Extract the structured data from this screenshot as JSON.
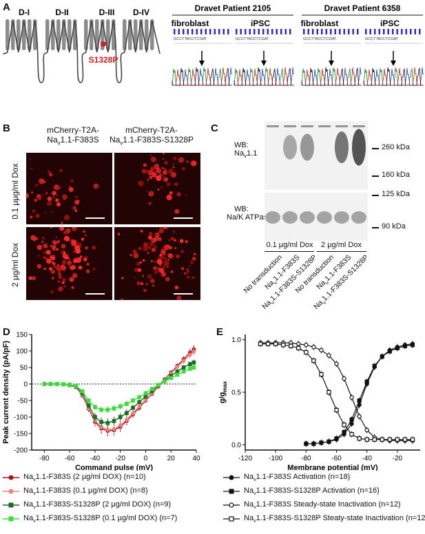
{
  "panelA": {
    "label": "A",
    "domains": [
      "D-I",
      "D-II",
      "D-III",
      "D-IV"
    ],
    "mutation": "S1328P",
    "patients": [
      {
        "title": "Dravet Patient 2105",
        "cells": [
          "fibroblast",
          "iPSC"
        ]
      },
      {
        "title": "Dravet Patient 6358",
        "cells": [
          "fibroblast",
          "iPSC"
        ]
      }
    ],
    "sequence": "GCCTTACCTCGAT"
  },
  "panelB": {
    "label": "B",
    "col_titles": [
      [
        "mCherry-T2A-",
        "Na",
        "v",
        "1.1-F383S"
      ],
      [
        "mCherry-T2A-",
        "Na",
        "v",
        "1.1-F383S-S1328P"
      ]
    ],
    "row_labels": [
      "0.1 μμg/ml Dox",
      "2 μg/ml Dox"
    ]
  },
  "panelC": {
    "label": "C",
    "wb_labels": [
      [
        "WB:",
        "Na",
        "v",
        "1.1"
      ],
      [
        "WB:",
        "Na/K ATPase"
      ]
    ],
    "markers": [
      "260 kDa",
      "160 kDa",
      "125 kDa",
      "90 kDa"
    ],
    "dox_groups": [
      "0.1 μg/ml Dox",
      "2 μg/ml Dox"
    ],
    "lanes": [
      {
        "pre": "No transduction",
        "sub": "",
        "post": ""
      },
      {
        "pre": "Na",
        "sub": "v",
        "post": "1.1-F383S"
      },
      {
        "pre": "Na",
        "sub": "v",
        "post": "1.1-F383S-S1328P"
      },
      {
        "pre": "No transduction",
        "sub": "",
        "post": ""
      },
      {
        "pre": "Na",
        "sub": "v",
        "post": "1.1-F383S"
      },
      {
        "pre": "Na",
        "sub": "v",
        "post": "1.1-F383S-S1328P"
      }
    ]
  },
  "chart_data": [
    {
      "panel": "D",
      "type": "line",
      "xlabel": "Command pulse (mV)",
      "ylabel": "Peak current density (pA/pF)",
      "xlim": [
        -90,
        40
      ],
      "ylim": [
        -200,
        150
      ],
      "xticks": [
        -80,
        -60,
        -40,
        -20,
        0,
        20,
        40
      ],
      "yticks": [
        -200,
        -150,
        -100,
        -50,
        0,
        50,
        100,
        150
      ],
      "x": [
        -80,
        -75,
        -70,
        -65,
        -60,
        -55,
        -50,
        -45,
        -40,
        -35,
        -30,
        -25,
        -20,
        -15,
        -10,
        -5,
        0,
        5,
        10,
        15,
        20,
        25,
        30,
        35,
        38
      ],
      "series": [
        {
          "name": "Na",
          "sub": "v",
          "rest": "1.1-F383S (2 μg/ml DOX) (n=10)",
          "color": "#a4161a",
          "marker": "circle",
          "values": [
            0,
            0,
            0,
            -1,
            -3,
            -10,
            -35,
            -75,
            -115,
            -135,
            -142,
            -140,
            -130,
            -112,
            -92,
            -72,
            -50,
            -30,
            -8,
            15,
            35,
            55,
            75,
            95,
            105
          ]
        },
        {
          "name": "Na",
          "sub": "v",
          "rest": "1.1-F383S (0.1 μg/ml DOX) (n=8)",
          "color": "#f08080",
          "marker": "circle",
          "values": [
            0,
            0,
            0,
            -1,
            -3,
            -10,
            -33,
            -72,
            -110,
            -130,
            -138,
            -136,
            -125,
            -108,
            -88,
            -68,
            -48,
            -28,
            -6,
            14,
            32,
            52,
            70,
            88,
            98
          ]
        },
        {
          "name": "Na",
          "sub": "v",
          "rest": "1.1-F383S-S1328P (2 μg/ml DOX) (n=9)",
          "color": "#1b6e20",
          "marker": "square",
          "values": [
            0,
            0,
            0,
            -1,
            -3,
            -8,
            -28,
            -65,
            -100,
            -115,
            -118,
            -112,
            -100,
            -88,
            -72,
            -55,
            -38,
            -22,
            -4,
            10,
            25,
            38,
            50,
            60,
            65
          ]
        },
        {
          "name": "Na",
          "sub": "v",
          "rest": "1.1-F383S-S1328P (0.1 μg/ml DOX) (n=7)",
          "color": "#3ddc3d",
          "marker": "square",
          "values": [
            0,
            0,
            0,
            -1,
            -2,
            -6,
            -22,
            -50,
            -70,
            -78,
            -78,
            -74,
            -68,
            -60,
            -50,
            -40,
            -28,
            -15,
            -3,
            8,
            18,
            28,
            38,
            46,
            50
          ]
        }
      ]
    },
    {
      "panel": "E",
      "type": "scatter",
      "xlabel": "Membrane potential (mV)",
      "ylabel": "g/g",
      "ylabel_sub": "max",
      "xlim": [
        -120,
        -5
      ],
      "ylim": [
        -0.05,
        1.05
      ],
      "xticks": [
        -120,
        -100,
        -80,
        -60,
        -40,
        -20
      ],
      "yticks": [
        0.0,
        0.5,
        1.0
      ],
      "series": [
        {
          "name": "Na",
          "sub": "v",
          "rest": "1.1-F383S Activation (n=18)",
          "marker": "filled-circle",
          "x": [
            -80,
            -75,
            -70,
            -65,
            -60,
            -55,
            -50,
            -45,
            -40,
            -35,
            -30,
            -25,
            -20,
            -15,
            -10
          ],
          "y": [
            0.01,
            0.01,
            0.02,
            0.03,
            0.05,
            0.1,
            0.2,
            0.38,
            0.58,
            0.74,
            0.84,
            0.9,
            0.93,
            0.95,
            0.96
          ]
        },
        {
          "name": "Na",
          "sub": "v",
          "rest": "1.1-F383S-S1328P Activation (n=16)",
          "marker": "filled-square",
          "x": [
            -80,
            -75,
            -70,
            -65,
            -60,
            -55,
            -50,
            -45,
            -40,
            -35,
            -30,
            -25,
            -20,
            -15,
            -10
          ],
          "y": [
            0.01,
            0.01,
            0.02,
            0.03,
            0.06,
            0.12,
            0.24,
            0.42,
            0.6,
            0.75,
            0.84,
            0.89,
            0.92,
            0.94,
            0.95
          ]
        },
        {
          "name": "Na",
          "sub": "v",
          "rest": "1.1-F383S Steady-state Inactivation (n=12)",
          "marker": "open-circle",
          "x": [
            -110,
            -105,
            -100,
            -95,
            -90,
            -85,
            -80,
            -75,
            -70,
            -65,
            -60,
            -55,
            -50,
            -45,
            -40,
            -35,
            -30,
            -25,
            -20,
            -15,
            -10
          ],
          "y": [
            0.97,
            0.97,
            0.97,
            0.97,
            0.97,
            0.96,
            0.95,
            0.93,
            0.9,
            0.85,
            0.77,
            0.63,
            0.45,
            0.27,
            0.14,
            0.07,
            0.05,
            0.04,
            0.04,
            0.04,
            0.04
          ]
        },
        {
          "name": "Na",
          "sub": "v",
          "rest": "1.1-F383S-S1328P Steaty-state Inactivation (n=12)",
          "marker": "open-square",
          "x": [
            -110,
            -105,
            -100,
            -95,
            -90,
            -85,
            -80,
            -75,
            -70,
            -65,
            -60,
            -55,
            -50,
            -45,
            -40,
            -35,
            -30,
            -25,
            -20,
            -15,
            -10
          ],
          "y": [
            0.96,
            0.96,
            0.96,
            0.95,
            0.94,
            0.92,
            0.88,
            0.8,
            0.67,
            0.5,
            0.33,
            0.19,
            0.1,
            0.06,
            0.05,
            0.05,
            0.05,
            0.05,
            0.05,
            0.05,
            0.05
          ]
        }
      ]
    }
  ]
}
